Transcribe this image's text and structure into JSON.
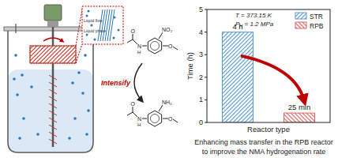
{
  "chart_data": {
    "type": "bar",
    "x_label": "Reactor type",
    "y_label": "Time (h)",
    "categories": [
      null,
      null
    ],
    "series": [
      {
        "name": "STR",
        "color": "#5b9bd5",
        "values": [
          4,
          null
        ],
        "value_labels": [
          "4 h",
          null
        ]
      },
      {
        "name": "RPB",
        "color": "#e06666",
        "values": [
          null,
          0.4167
        ],
        "value_labels": [
          null,
          "25 min"
        ]
      }
    ],
    "ylim": [
      0,
      5
    ],
    "yticks": [
      0,
      1,
      2,
      3,
      4,
      5
    ],
    "data_labels": true,
    "legend": "top-right",
    "annotations": [
      "T = 373.15 K",
      {
        "main": "P",
        "sub": "H",
        "rest": " = 1.2 MPa"
      }
    ]
  },
  "diagram": {
    "inset_labels": [
      "Liquid flow",
      "Liquid phase"
    ],
    "arrow_label": "Intensify",
    "reactant_groups": [
      "NO₂",
      "O",
      "O",
      "N",
      "H"
    ],
    "product_groups": [
      "NH₂",
      "O",
      "O",
      "N",
      "H"
    ],
    "caption": [
      "Enhancing mass transfer in the RPB reactor",
      "to improve the NMA hydrogenation rate"
    ]
  }
}
